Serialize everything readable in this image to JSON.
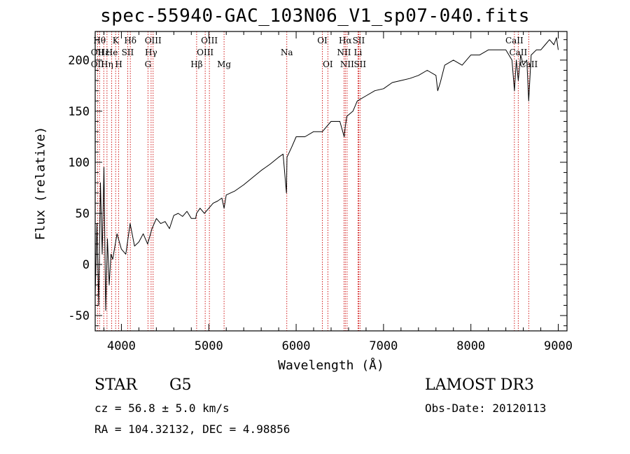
{
  "page_title": "spec-55940-GAC_103N06_V1_sp07-040.fits",
  "chart_data": {
    "type": "line",
    "title": "spec-55940-GAC_103N06_V1_sp07-040.fits",
    "xlabel": "Wavelength (Å)",
    "ylabel": "Flux (relative)",
    "xlim": [
      3700,
      9100
    ],
    "ylim": [
      -65,
      228
    ],
    "xticks": [
      4000,
      5000,
      6000,
      7000,
      8000,
      9000
    ],
    "yticks": [
      -50,
      0,
      50,
      100,
      150,
      200
    ],
    "series": [
      {
        "name": "spectrum",
        "x": [
          3700,
          3720,
          3740,
          3760,
          3780,
          3800,
          3820,
          3840,
          3860,
          3880,
          3900,
          3950,
          4000,
          4050,
          4100,
          4150,
          4200,
          4250,
          4300,
          4350,
          4400,
          4450,
          4500,
          4550,
          4600,
          4650,
          4700,
          4750,
          4800,
          4850,
          4860,
          4900,
          4950,
          5000,
          5050,
          5100,
          5150,
          5175,
          5200,
          5300,
          5400,
          5500,
          5600,
          5700,
          5800,
          5850,
          5889,
          5895,
          5950,
          6000,
          6100,
          6200,
          6300,
          6400,
          6500,
          6550,
          6563,
          6580,
          6650,
          6700,
          6800,
          6900,
          7000,
          7100,
          7200,
          7300,
          7400,
          7500,
          7600,
          7620,
          7650,
          7700,
          7800,
          7900,
          8000,
          8100,
          8200,
          8300,
          8400,
          8470,
          8498,
          8520,
          8542,
          8570,
          8600,
          8640,
          8662,
          8690,
          8750,
          8800,
          8850,
          8900,
          8950,
          8980,
          9000
        ],
        "y": [
          -30,
          40,
          -40,
          80,
          10,
          95,
          -45,
          25,
          -20,
          10,
          5,
          30,
          15,
          10,
          40,
          18,
          22,
          30,
          20,
          35,
          45,
          40,
          42,
          35,
          48,
          50,
          47,
          52,
          45,
          45,
          50,
          55,
          50,
          55,
          60,
          62,
          65,
          55,
          68,
          72,
          78,
          85,
          92,
          98,
          105,
          108,
          70,
          105,
          115,
          125,
          125,
          130,
          130,
          140,
          140,
          125,
          135,
          145,
          150,
          160,
          165,
          170,
          172,
          178,
          180,
          182,
          185,
          190,
          185,
          170,
          178,
          195,
          200,
          195,
          205,
          205,
          210,
          210,
          210,
          200,
          170,
          200,
          180,
          205,
          195,
          200,
          160,
          205,
          210,
          210,
          215,
          220,
          215,
          222,
          210
        ]
      }
    ],
    "lines": [
      {
        "wl": 3750,
        "row": 1,
        "label": "Hθ"
      },
      {
        "wl": 3727,
        "row": 2,
        "label": "OII"
      },
      {
        "wl": 3727,
        "row": 3,
        "label": "OII"
      },
      {
        "wl": 3798,
        "row": 2,
        "label": "Hε"
      },
      {
        "wl": 3835,
        "row": 3,
        "label": "Hη"
      },
      {
        "wl": 3889,
        "row": 2,
        "label": "He"
      },
      {
        "wl": 3934,
        "row": 1,
        "label": "K"
      },
      {
        "wl": 3969,
        "row": 3,
        "label": "H"
      },
      {
        "wl": 4072,
        "row": 2,
        "label": "SII"
      },
      {
        "wl": 4102,
        "row": 1,
        "label": "Hδ"
      },
      {
        "wl": 4340,
        "row": 2,
        "label": "Hγ"
      },
      {
        "wl": 4304,
        "row": 3,
        "label": "G"
      },
      {
        "wl": 4363,
        "row": 1,
        "label": "OIII"
      },
      {
        "wl": 4861,
        "row": 3,
        "label": "Hβ"
      },
      {
        "wl": 4959,
        "row": 2,
        "label": "OIII"
      },
      {
        "wl": 5007,
        "row": 1,
        "label": "OIII"
      },
      {
        "wl": 5175,
        "row": 3,
        "label": "Mg"
      },
      {
        "wl": 5893,
        "row": 2,
        "label": "Na"
      },
      {
        "wl": 6300,
        "row": 1,
        "label": "OI"
      },
      {
        "wl": 6363,
        "row": 3,
        "label": "OI"
      },
      {
        "wl": 6548,
        "row": 2,
        "label": "NII"
      },
      {
        "wl": 6563,
        "row": 1,
        "label": "Hα"
      },
      {
        "wl": 6583,
        "row": 3,
        "label": "NII"
      },
      {
        "wl": 6716,
        "row": 1,
        "label": "SII"
      },
      {
        "wl": 6708,
        "row": 2,
        "label": "Li"
      },
      {
        "wl": 6731,
        "row": 3,
        "label": "SII"
      },
      {
        "wl": 8498,
        "row": 1,
        "label": "CaII"
      },
      {
        "wl": 8542,
        "row": 2,
        "label": "CaII"
      },
      {
        "wl": 8662,
        "row": 3,
        "label": "CaII"
      }
    ]
  },
  "info": {
    "class_label": "STAR",
    "subclass": "G5",
    "survey": "LAMOST DR3",
    "cz": "cz = 56.8 ± 5.0 km/s",
    "obs_date": "Obs-Date: 20120113",
    "radec": "RA = 104.32132, DEC =   4.98856"
  },
  "colors": {
    "axis": "#000000",
    "spectrum": "#000000",
    "line_marker": "#cc0000"
  }
}
